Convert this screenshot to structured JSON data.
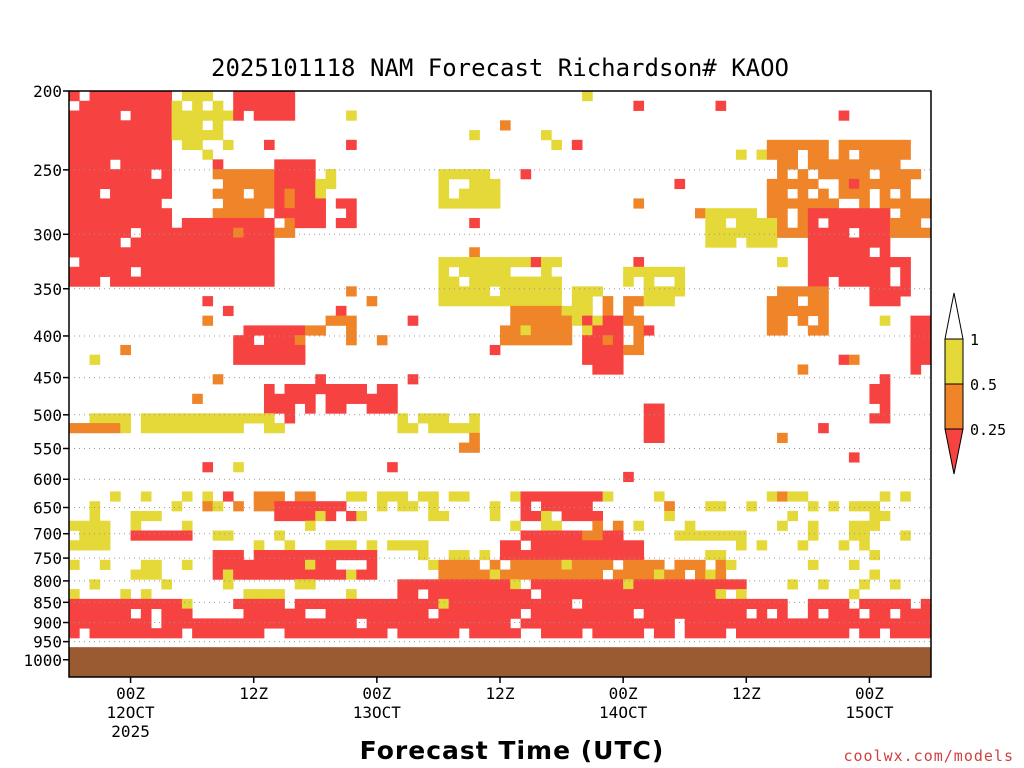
{
  "chart_data": {
    "type": "heatmap",
    "title": "2025101118 NAM Forecast Richardson# KAOO",
    "xlabel": "Forecast Time (UTC)",
    "credit": "coolwx.com/models",
    "y_axis": {
      "scale": "pressure (log)",
      "range": [
        200,
        1050
      ],
      "ticks": [
        "200",
        "250",
        "300",
        "350",
        "400",
        "450",
        "500",
        "550",
        "600",
        "650",
        "700",
        "750",
        "800",
        "850",
        "900",
        "950",
        "1000"
      ]
    },
    "x_axis": {
      "range_hours": [
        -6,
        78
      ],
      "ticks": [
        {
          "hour": 0,
          "label": [
            "00Z",
            "12OCT",
            "2025"
          ]
        },
        {
          "hour": 12,
          "label": [
            "12Z"
          ]
        },
        {
          "hour": 24,
          "label": [
            "00Z",
            "13OCT"
          ]
        },
        {
          "hour": 36,
          "label": [
            "12Z"
          ]
        },
        {
          "hour": 48,
          "label": [
            "00Z",
            "14OCT"
          ]
        },
        {
          "hour": 60,
          "label": [
            "12Z"
          ]
        },
        {
          "hour": 72,
          "label": [
            "00Z",
            "15OCT"
          ]
        }
      ]
    },
    "colorbar": {
      "levels": [
        "1",
        "0.5",
        "0.25"
      ],
      "bins": [
        {
          "range": "> 1",
          "color": "#ffffff"
        },
        {
          "range": "0.5 - 1",
          "color": "#e5d93a"
        },
        {
          "range": "0.25 - 0.5",
          "color": "#ef8428"
        },
        {
          "range": "< 0.25",
          "color": "#f74242"
        }
      ]
    },
    "ground": {
      "color": "#9a5a32"
    },
    "blobs": [
      {
        "h": [
          -6,
          4
        ],
        "p": [
          200,
          290
        ],
        "c": 3
      },
      {
        "h": [
          4,
          10
        ],
        "p": [
          200,
          235
        ],
        "c": 1
      },
      {
        "h": [
          10,
          16
        ],
        "p": [
          200,
          220
        ],
        "c": 3
      },
      {
        "h": [
          -6,
          14
        ],
        "p": [
          290,
          345
        ],
        "c": 3
      },
      {
        "h": [
          8,
          16
        ],
        "p": [
          250,
          300
        ],
        "c": 2
      },
      {
        "h": [
          16,
          22
        ],
        "p": [
          270,
          295
        ],
        "c": 3
      },
      {
        "h": [
          14,
          18
        ],
        "p": [
          240,
          290
        ],
        "c": 3
      },
      {
        "h": [
          16,
          20
        ],
        "p": [
          250,
          270
        ],
        "c": 1
      },
      {
        "h": [
          10,
          17
        ],
        "p": [
          390,
          430
        ],
        "c": 3
      },
      {
        "h": [
          13,
          26
        ],
        "p": [
          455,
          495
        ],
        "c": 3
      },
      {
        "h": [
          16,
          22
        ],
        "p": [
          380,
          410
        ],
        "c": 2
      },
      {
        "h": [
          -6,
          14
        ],
        "p": [
          495,
          525
        ],
        "c": 1
      },
      {
        "h": [
          -6,
          0
        ],
        "p": [
          505,
          525
        ],
        "c": 2
      },
      {
        "h": [
          26,
          34
        ],
        "p": [
          495,
          525
        ],
        "c": 1
      },
      {
        "h": [
          32,
          34
        ],
        "p": [
          520,
          560
        ],
        "c": 2
      },
      {
        "h": [
          30,
          42
        ],
        "p": [
          320,
          370
        ],
        "c": 1
      },
      {
        "h": [
          36,
          43
        ],
        "p": [
          370,
          410
        ],
        "c": 2
      },
      {
        "h": [
          44,
          48
        ],
        "p": [
          380,
          440
        ],
        "c": 3
      },
      {
        "h": [
          38,
          46
        ],
        "p": [
          350,
          400
        ],
        "c": 1
      },
      {
        "h": [
          46,
          50
        ],
        "p": [
          360,
          420
        ],
        "c": 2
      },
      {
        "h": [
          48,
          54
        ],
        "p": [
          330,
          370
        ],
        "c": 1
      },
      {
        "h": [
          50,
          52
        ],
        "p": [
          480,
          540
        ],
        "c": 3
      },
      {
        "h": [
          30,
          36
        ],
        "p": [
          250,
          280
        ],
        "c": 1
      },
      {
        "h": [
          56,
          64
        ],
        "p": [
          280,
          310
        ],
        "c": 1
      },
      {
        "h": [
          62,
          70
        ],
        "p": [
          230,
          300
        ],
        "c": 2
      },
      {
        "h": [
          66,
          74
        ],
        "p": [
          280,
          350
        ],
        "c": 3
      },
      {
        "h": [
          70,
          76
        ],
        "p": [
          230,
          280
        ],
        "c": 2
      },
      {
        "h": [
          74,
          78
        ],
        "p": [
          270,
          300
        ],
        "c": 2
      },
      {
        "h": [
          72,
          76
        ],
        "p": [
          320,
          370
        ],
        "c": 3
      },
      {
        "h": [
          76,
          78
        ],
        "p": [
          380,
          440
        ],
        "c": 3
      },
      {
        "h": [
          72,
          74
        ],
        "p": [
          440,
          510
        ],
        "c": 3
      },
      {
        "h": [
          62,
          68
        ],
        "p": [
          350,
          400
        ],
        "c": 2
      },
      {
        "h": [
          70,
          74
        ],
        "p": [
          640,
          700
        ],
        "c": 1
      },
      {
        "h": [
          14,
          22
        ],
        "p": [
          640,
          680
        ],
        "c": 3
      },
      {
        "h": [
          12,
          18
        ],
        "p": [
          620,
          660
        ],
        "c": 2
      },
      {
        "h": [
          24,
          30
        ],
        "p": [
          625,
          660
        ],
        "c": 1
      },
      {
        "h": [
          38,
          46
        ],
        "p": [
          625,
          680
        ],
        "c": 3
      },
      {
        "h": [
          -6,
          -2
        ],
        "p": [
          680,
          740
        ],
        "c": 1
      },
      {
        "h": [
          0,
          6
        ],
        "p": [
          700,
          720
        ],
        "c": 3
      },
      {
        "h": [
          50,
          60
        ],
        "p": [
          700,
          720
        ],
        "c": 1
      },
      {
        "h": [
          44,
          48
        ],
        "p": [
          680,
          720
        ],
        "c": 2
      }
    ],
    "bands": [
      {
        "h": [
          -6,
          78
        ],
        "p": [
          900,
          950
        ],
        "c": 3
      },
      {
        "h": [
          -6,
          78
        ],
        "p": [
          880,
          900
        ],
        "c": 2
      },
      {
        "h": [
          10,
          64
        ],
        "p": [
          850,
          880
        ],
        "c": 3
      },
      {
        "h": [
          26,
          60
        ],
        "p": [
          800,
          850
        ],
        "c": 3
      },
      {
        "h": [
          30,
          58
        ],
        "p": [
          760,
          800
        ],
        "c": 2
      },
      {
        "h": [
          36,
          50
        ],
        "p": [
          720,
          760
        ],
        "c": 3
      },
      {
        "h": [
          38,
          48
        ],
        "p": [
          690,
          720
        ],
        "c": 3
      },
      {
        "h": [
          8,
          24
        ],
        "p": [
          730,
          800
        ],
        "c": 3
      },
      {
        "h": [
          4,
          12
        ],
        "p": [
          760,
          820
        ],
        "c": 1
      },
      {
        "h": [
          -6,
          6
        ],
        "p": [
          840,
          880
        ],
        "c": 3
      },
      {
        "h": [
          66,
          78
        ],
        "p": [
          840,
          880
        ],
        "c": 3
      },
      {
        "h": [
          -6,
          78
        ],
        "p": [
          620,
          860
        ],
        "c": 1
      }
    ]
  }
}
